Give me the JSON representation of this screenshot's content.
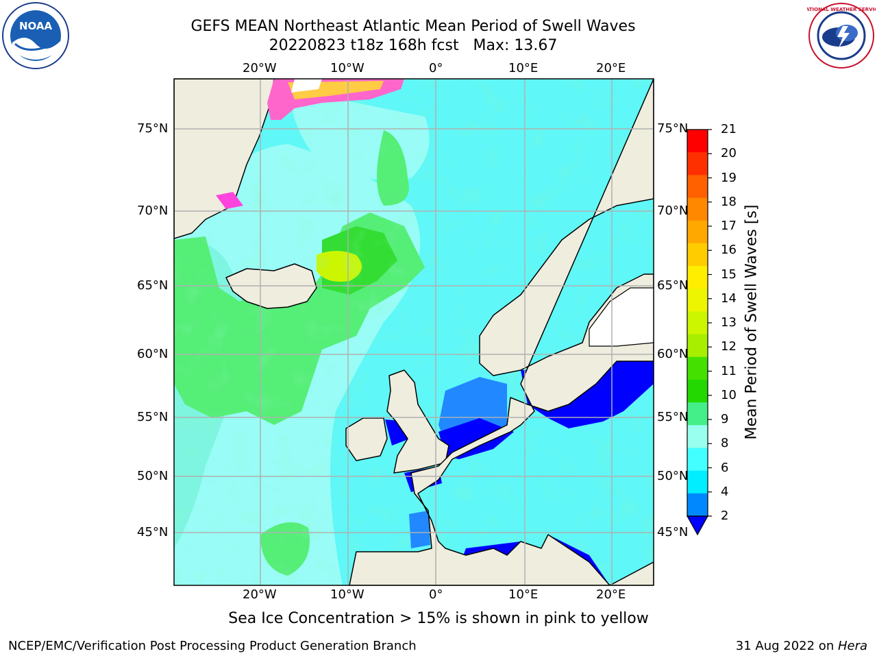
{
  "header": {
    "title": "GEFS MEAN Northeast Atlantic Mean Period of Swell Waves",
    "subtitle": "20220823 t18z 168h fcst   Max: 13.67"
  },
  "map": {
    "lon_labels": [
      "20°W",
      "10°W",
      "0°",
      "10°E",
      "20°E"
    ],
    "lat_labels": [
      "75°N",
      "70°N",
      "65°N",
      "60°N",
      "55°N",
      "50°N",
      "45°N"
    ],
    "colors": {
      "land": "#eeedde",
      "coast": "#000000",
      "grid": "#b0b0b0"
    }
  },
  "colorbar": {
    "title": "Mean Period of Swell Waves [s]",
    "ticks": [
      "21",
      "20",
      "19",
      "18",
      "17",
      "16",
      "15",
      "14",
      "13",
      "12",
      "11",
      "10",
      "9",
      "8",
      "6",
      "4",
      "2"
    ],
    "colors_top_to_bottom": [
      "#ff0000",
      "#ff3000",
      "#ff6000",
      "#ff8800",
      "#ffa800",
      "#ffcc00",
      "#ffee00",
      "#eef500",
      "#ccf500",
      "#a8ee00",
      "#44e000",
      "#22d800",
      "#44ee88",
      "#99ffee",
      "#44ffff",
      "#00eeff",
      "#0088ff"
    ],
    "under_color": "#0000ff"
  },
  "footer": {
    "caption": "Sea Ice Concentration > 15% is shown in pink to yellow",
    "credit": "NCEP/EMC/Verification Post Processing Product Generation Branch",
    "date": "31 Aug 2022 on ",
    "host": "Hera"
  },
  "logos": {
    "noaa": "NOAA",
    "nws": "NATIONAL WEATHER SERVICE"
  }
}
